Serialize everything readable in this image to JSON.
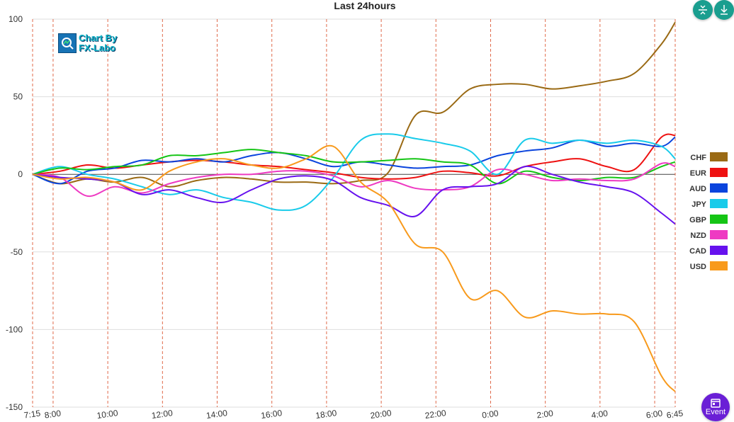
{
  "chart_data": {
    "type": "line",
    "title": "Last 24hours",
    "ylim": [
      -150,
      100
    ],
    "yticks": [
      100,
      50,
      0,
      -50,
      -100,
      -150
    ],
    "x_range": [
      "7:15",
      "6:45"
    ],
    "xticks": [
      "7:15",
      "8:00",
      "10:00",
      "12:00",
      "14:00",
      "16:00",
      "18:00",
      "20:00",
      "22:00",
      "0:00",
      "2:00",
      "4:00",
      "6:00",
      "6:45"
    ],
    "x_hours": [
      0,
      0.75,
      2.75,
      4.75,
      6.75,
      8.75,
      10.75,
      12.75,
      14.75,
      16.75,
      18.75,
      20.75,
      22.75,
      23.5
    ],
    "grid": true,
    "legend_position": "right",
    "series": [
      {
        "name": "CHF",
        "color": "#9a6a14",
        "x": [
          0,
          1,
          2,
          3,
          4,
          5,
          6,
          7,
          8,
          9,
          10,
          11,
          12,
          13,
          14,
          15,
          16,
          17,
          18,
          19,
          20,
          21,
          22,
          23,
          23.5
        ],
        "y": [
          0,
          -6,
          -3,
          -5,
          -2,
          -8,
          -4,
          -2,
          -3,
          -5,
          -5,
          -6,
          -4,
          1,
          38,
          40,
          55,
          58,
          58,
          55,
          57,
          60,
          65,
          84,
          98
        ]
      },
      {
        "name": "EUR",
        "color": "#ee1111",
        "x": [
          0,
          1,
          2,
          3,
          4,
          5,
          6,
          7,
          8,
          9,
          10,
          11,
          12,
          13,
          14,
          15,
          16,
          17,
          18,
          19,
          20,
          21,
          22,
          23,
          23.5
        ],
        "y": [
          0,
          2,
          6,
          4,
          6,
          8,
          9,
          8,
          6,
          5,
          3,
          1,
          -2,
          -3,
          -2,
          2,
          1,
          -1,
          5,
          8,
          10,
          5,
          3,
          24,
          25
        ]
      },
      {
        "name": "AUD",
        "color": "#0a44dd",
        "x": [
          0,
          1,
          2,
          3,
          4,
          5,
          6,
          7,
          8,
          9,
          10,
          11,
          12,
          13,
          14,
          15,
          16,
          17,
          18,
          19,
          20,
          21,
          22,
          23,
          23.5
        ],
        "y": [
          0,
          -6,
          2,
          4,
          9,
          8,
          10,
          8,
          12,
          14,
          10,
          5,
          8,
          6,
          4,
          5,
          6,
          12,
          15,
          17,
          22,
          18,
          20,
          18,
          24
        ]
      },
      {
        "name": "JPY",
        "color": "#19cbea",
        "x": [
          0,
          1,
          2,
          3,
          4,
          5,
          6,
          7,
          8,
          9,
          10,
          11,
          12,
          13,
          14,
          15,
          16,
          17,
          18,
          19,
          20,
          21,
          22,
          23,
          23.5
        ],
        "y": [
          0,
          5,
          0,
          -3,
          -8,
          -13,
          -10,
          -15,
          -18,
          -23,
          -20,
          -2,
          22,
          26,
          23,
          20,
          15,
          0,
          22,
          20,
          22,
          20,
          22,
          18,
          10
        ]
      },
      {
        "name": "GBP",
        "color": "#15c515",
        "x": [
          0,
          1,
          2,
          3,
          4,
          5,
          6,
          7,
          8,
          9,
          10,
          11,
          12,
          13,
          14,
          15,
          16,
          17,
          18,
          19,
          20,
          21,
          22,
          23,
          23.5
        ],
        "y": [
          0,
          4,
          3,
          5,
          6,
          12,
          12,
          14,
          16,
          14,
          12,
          8,
          8,
          9,
          10,
          8,
          6,
          -6,
          2,
          -2,
          -4,
          -2,
          -2,
          5,
          8
        ]
      },
      {
        "name": "NZD",
        "color": "#ee3ac2",
        "x": [
          0,
          1,
          2,
          3,
          4,
          5,
          6,
          7,
          8,
          9,
          10,
          11,
          12,
          13,
          14,
          15,
          16,
          17,
          18,
          19,
          20,
          21,
          22,
          23,
          23.5
        ],
        "y": [
          0,
          -2,
          -14,
          -8,
          -12,
          -6,
          -2,
          0,
          0,
          2,
          2,
          -1,
          -8,
          -4,
          -9,
          -10,
          -8,
          3,
          0,
          -4,
          -3,
          -4,
          -3,
          7,
          5
        ]
      },
      {
        "name": "CAD",
        "color": "#6611ee",
        "x": [
          0,
          1,
          2,
          3,
          4,
          5,
          6,
          7,
          8,
          9,
          10,
          11,
          12,
          13,
          14,
          15,
          16,
          17,
          18,
          19,
          20,
          21,
          22,
          23,
          23.5
        ],
        "y": [
          0,
          -2,
          -3,
          -5,
          -13,
          -10,
          -15,
          -18,
          -10,
          -3,
          -1,
          -4,
          -15,
          -20,
          -27,
          -10,
          -8,
          -6,
          5,
          0,
          -5,
          -8,
          -12,
          -25,
          -32
        ]
      },
      {
        "name": "USD",
        "color": "#f89a1c",
        "x": [
          0,
          1,
          2,
          3,
          4,
          5,
          6,
          7,
          8,
          9,
          10,
          11,
          12,
          13,
          14,
          15,
          16,
          17,
          18,
          19,
          20,
          21,
          22,
          23,
          23.5
        ],
        "y": [
          0,
          -3,
          -2,
          -5,
          -10,
          2,
          8,
          10,
          6,
          4,
          10,
          18,
          -5,
          -18,
          -45,
          -50,
          -80,
          -75,
          -92,
          -88,
          -90,
          -90,
          -95,
          -130,
          -140
        ]
      }
    ]
  },
  "logo": {
    "line1": "Chart By",
    "line2": "FX-Labo"
  },
  "buttons": {
    "event_label": "Event"
  }
}
